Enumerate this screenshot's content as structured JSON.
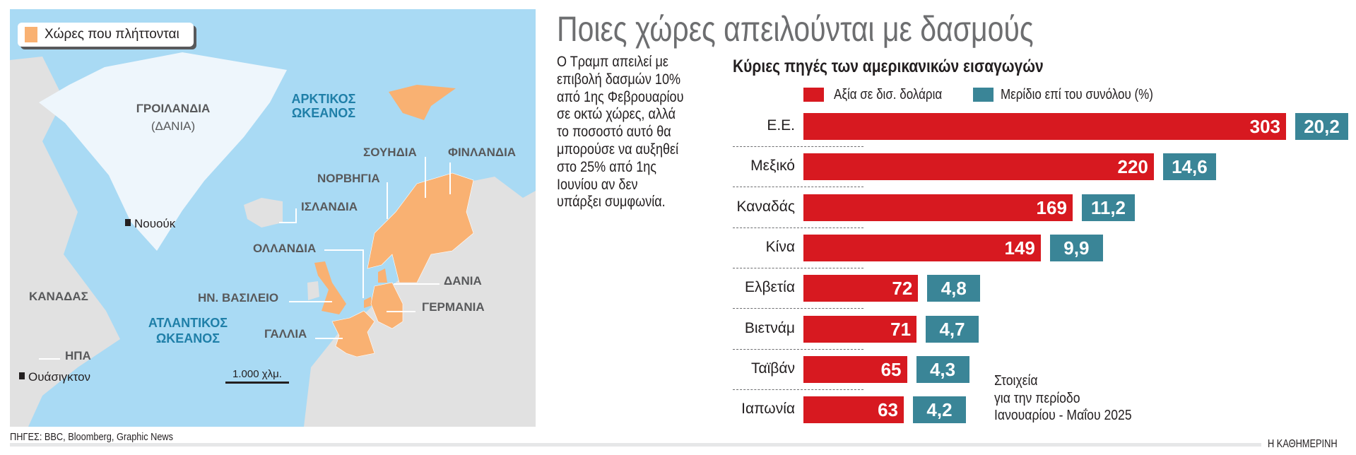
{
  "header": {
    "title": "Ποιες χώρες απειλούνται με δασμούς"
  },
  "intro": "Ο Τραμπ απειλεί με\nεπιβολή δασμών 10%\nαπό 1ης Φεβρουαρίου\nσε οκτώ χώρες, αλλά\nτο ποσοστό αυτό θα\nμπορούσε να αυξηθεί\nστο 25% από 1ης\nΙουνίου αν δεν\nυπάρξει συμφωνία.",
  "map": {
    "legend": "Χώρες που πλήττονται",
    "colors": {
      "affected": "#f9b172",
      "sea": "#a9daf4",
      "land": "#e1e1e1",
      "greenland": "#eef6fc",
      "ocean_label": "#1f7fa8"
    },
    "labels": {
      "greenland": "ΓΡΟΙΛΑΝΔΙΑ",
      "greenland_sub": "(ΔΑΝΙΑ)",
      "arctic_1": "ΑΡΚΤΙΚΟΣ",
      "arctic_2": "ΩΚΕΑΝΟΣ",
      "nuuk": "Νουούκ",
      "iceland": "ΙΣΛΑΝΔΙΑ",
      "sweden": "ΣΟΥΗΔΙΑ",
      "finland": "ΦΙΝΛΑΝΔΙΑ",
      "norway": "ΝΟΡΒΗΓΙΑ",
      "netherlands": "ΟΛΛΑΝΔΙΑ",
      "denmark": "ΔΑΝΙΑ",
      "uk": "ΗΝ. ΒΑΣΙΛΕΙΟ",
      "germany": "ΓΕΡΜΑΝΙΑ",
      "canada": "ΚΑΝΑΔΑΣ",
      "atlantic_1": "ΑΤΛΑΝΤΙΚΟΣ",
      "atlantic_2": "ΩΚΕΑΝΟΣ",
      "france": "ΓΑΛΛΙΑ",
      "usa": "ΗΠΑ",
      "washington": "Ουάσιγκτον",
      "scale": "1.000 χλμ."
    }
  },
  "chart_data": {
    "type": "bar",
    "title": "Κύριες πηγές των αμερικανικών εισαγωγών",
    "categories": [
      "Ε.Ε.",
      "Μεξικό",
      "Καναδάς",
      "Κίνα",
      "Ελβετία",
      "Βιετνάμ",
      "Ταϊβάν",
      "Ιαπωνία"
    ],
    "series": [
      {
        "name": "Αξία σε δισ. δολάρια",
        "color": "#d71920",
        "values": [
          303,
          220,
          169,
          149,
          72,
          71,
          65,
          63
        ],
        "labels": [
          "303",
          "220",
          "169",
          "149",
          "72",
          "71",
          "65",
          "63"
        ]
      },
      {
        "name": "Μερίδιο επί του συνόλου (%)",
        "color": "#3a8597",
        "values": [
          20.2,
          14.6,
          11.2,
          9.9,
          4.8,
          4.7,
          4.3,
          4.2
        ],
        "labels": [
          "20,2",
          "14,6",
          "11,2",
          "9,9",
          "4,8",
          "4,7",
          "4,3",
          "4,2"
        ]
      }
    ],
    "orientation": "horizontal",
    "legend": "top",
    "note": "Στοιχεία\nγια την περίοδο\nΙανουαρίου - Μαΐου 2025"
  },
  "footer": {
    "sources": "ΠΗΓΕΣ: BBC, Bloomberg, Graphic News",
    "brand": "Η ΚΑΘΗΜΕΡΙΝΗ"
  }
}
